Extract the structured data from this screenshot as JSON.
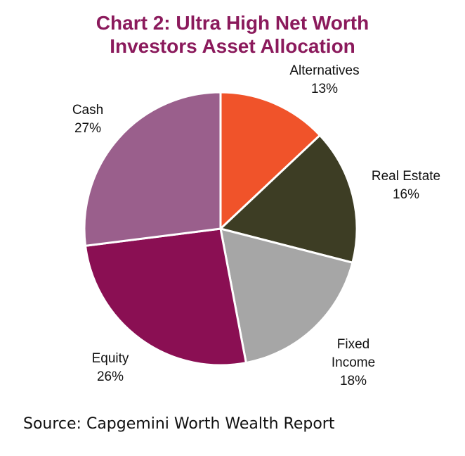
{
  "chart_data": {
    "type": "pie",
    "title_lines": [
      "Chart 2: Ultra High Net Worth",
      "Investors Asset Allocation"
    ],
    "slices": [
      {
        "label": "Alternatives",
        "value": 13,
        "value_label": "13%",
        "color": "#F0532A"
      },
      {
        "label": "Real Estate",
        "value": 16,
        "value_label": "16%",
        "color": "#3D3D24"
      },
      {
        "label": "Fixed Income",
        "value": 18,
        "value_label": "18%",
        "color": "#A6A6A6"
      },
      {
        "label": "Equity",
        "value": 26,
        "value_label": "26%",
        "color": "#8A0F53"
      },
      {
        "label": "Cash",
        "value": 27,
        "value_label": "27%",
        "color": "#9A5F8C"
      }
    ],
    "start": "top",
    "direction": "clockwise",
    "source": "Source: Capgemini Worth Wealth Report"
  }
}
